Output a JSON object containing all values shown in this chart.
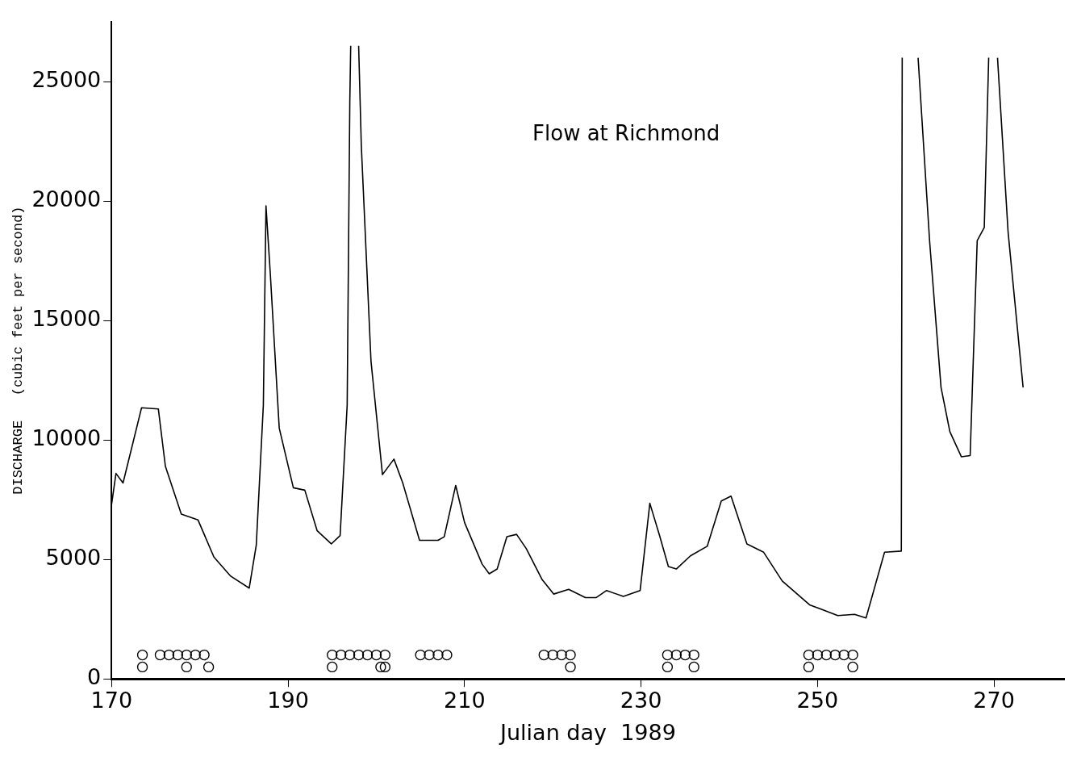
{
  "chart_data": {
    "type": "line",
    "title": "Flow at Richmond",
    "xlabel": "Julian day  1989",
    "ylabel": "DISCHARGE   (cubic feet per second)",
    "xlim": [
      170,
      278
    ],
    "ylim": [
      0,
      27500
    ],
    "xticks": [
      170,
      190,
      210,
      230,
      250,
      270
    ],
    "yticks": [
      0,
      5000,
      10000,
      15000,
      20000,
      25000
    ],
    "series": [
      {
        "type": "line",
        "color": "#000000",
        "marker": "none",
        "line_style": "solid",
        "x": [
          170,
          170.5,
          171.3,
          173.4,
          175.3,
          176.1,
          177.9,
          179.8,
          181.6,
          183.5,
          185.6,
          186.4,
          187.2,
          187.5,
          188,
          189,
          190.6,
          191.9,
          193.3,
          194.9,
          195.9,
          196.7,
          197,
          197.1,
          197.5,
          198,
          198.3,
          199.4,
          200.7,
          202,
          203,
          204.9,
          207,
          207.7,
          209,
          210,
          212,
          212.8,
          213.7,
          214.8,
          215.9,
          217,
          218.8,
          220.1,
          221.8,
          223.7,
          224.9,
          226.1,
          228,
          229.9,
          231,
          232.1,
          233.1,
          234,
          235.6,
          237.5,
          239.1,
          240.2,
          242,
          243.9,
          246,
          249.1,
          252.3,
          254.2,
          255.5,
          257.6,
          259.5,
          259.6,
          260.5,
          261.4,
          262.7,
          264,
          265,
          266.3,
          267.3,
          268.1,
          268.9,
          269.4,
          269.9,
          270.4,
          271.6,
          273.3
        ],
        "values": [
          7300,
          8600,
          8200,
          11350,
          11300,
          8900,
          6900,
          6650,
          5100,
          4300,
          3800,
          5600,
          11450,
          19800,
          16900,
          10500,
          8000,
          7900,
          6200,
          5650,
          6000,
          11450,
          24200,
          26500,
          null,
          26500,
          22350,
          13300,
          8550,
          9200,
          8200,
          5800,
          5800,
          5950,
          8100,
          6550,
          4800,
          4400,
          4600,
          5950,
          6050,
          5450,
          4150,
          3550,
          3750,
          3400,
          3400,
          3700,
          3450,
          3700,
          7350,
          6000,
          4700,
          4600,
          5150,
          5550,
          7450,
          7650,
          5650,
          5300,
          4100,
          3100,
          2650,
          2700,
          2550,
          5300,
          5350,
          26000,
          null,
          26000,
          18350,
          12200,
          10350,
          9300,
          9350,
          18350,
          18900,
          26000,
          null,
          26000,
          18700,
          12200
        ]
      },
      {
        "type": "scatter",
        "color": "#000000",
        "marker": "circle",
        "x": [
          173.5,
          175.5,
          176.5,
          177.5,
          178.5,
          179.5,
          180.5,
          173.5,
          178.5,
          181,
          195,
          196,
          197,
          198,
          199,
          200,
          201,
          195,
          200.5,
          201,
          205,
          206,
          207,
          208,
          219,
          220,
          221,
          222,
          222,
          233,
          234,
          235,
          236,
          233,
          236,
          249,
          250,
          251,
          252,
          253,
          254,
          249,
          254
        ],
        "values": [
          1000,
          1000,
          1000,
          1000,
          1000,
          1000,
          1000,
          500,
          500,
          500,
          1000,
          1000,
          1000,
          1000,
          1000,
          1000,
          1000,
          500,
          500,
          500,
          1000,
          1000,
          1000,
          1000,
          1000,
          1000,
          1000,
          1000,
          500,
          1000,
          1000,
          1000,
          1000,
          500,
          500,
          1000,
          1000,
          1000,
          1000,
          1000,
          1000,
          500,
          500
        ]
      }
    ]
  }
}
